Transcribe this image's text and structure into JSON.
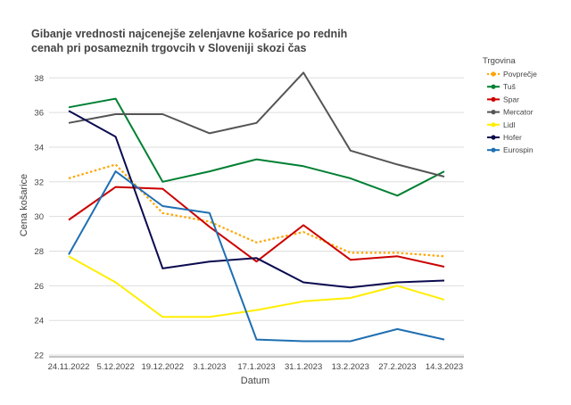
{
  "chart_data": {
    "type": "line",
    "title_lines": [
      "Gibanje vrednosti najcenejše zelenjavne košarice  po rednih",
      " cenah pri posameznih trgovcih v Sloveniji skozi čas"
    ],
    "xlabel": "Datum",
    "ylabel": "Cena košarice",
    "categories": [
      "24.11.2022",
      "5.12.2022",
      "19.12.2022",
      "3.1.2023",
      "17.1.2023",
      "31.1.2023",
      "13.2.2023",
      "27.2.2023",
      "14.3.2023"
    ],
    "yticks": [
      22,
      24,
      26,
      28,
      30,
      32,
      34,
      36,
      38
    ],
    "ylim": [
      21.9,
      39.3
    ],
    "grid": "horizontal",
    "legend_title": "Trgovina",
    "legend_position": "right",
    "series": [
      {
        "name": "Povprečje",
        "color": "#ffa500",
        "dashed": true,
        "values": [
          32.2,
          33.0,
          30.2,
          29.7,
          28.5,
          29.1,
          27.9,
          27.9,
          27.7
        ]
      },
      {
        "name": "Tuš",
        "color": "#008033",
        "dashed": false,
        "values": [
          36.3,
          36.8,
          32.0,
          32.6,
          33.3,
          32.9,
          32.2,
          31.2,
          32.6
        ]
      },
      {
        "name": "Spar",
        "color": "#cc0000",
        "dashed": false,
        "values": [
          29.8,
          31.7,
          31.6,
          29.4,
          27.4,
          29.5,
          27.5,
          27.7,
          27.1
        ]
      },
      {
        "name": "Mercator",
        "color": "#555555",
        "dashed": false,
        "values": [
          35.4,
          35.9,
          35.9,
          34.8,
          35.4,
          38.3,
          33.8,
          33.0,
          32.3
        ]
      },
      {
        "name": "Lidl",
        "color": "#ffee00",
        "dashed": false,
        "values": [
          27.7,
          26.2,
          24.2,
          24.2,
          24.6,
          25.1,
          25.3,
          26.0,
          25.2
        ]
      },
      {
        "name": "Hofer",
        "color": "#0a0a50",
        "dashed": false,
        "values": [
          36.1,
          34.6,
          27.0,
          27.4,
          27.6,
          26.2,
          25.9,
          26.2,
          26.3
        ]
      },
      {
        "name": "Eurospin",
        "color": "#1f6fb2",
        "dashed": false,
        "values": [
          27.8,
          32.6,
          30.6,
          30.2,
          22.9,
          22.8,
          22.8,
          23.5,
          22.9
        ]
      }
    ]
  }
}
